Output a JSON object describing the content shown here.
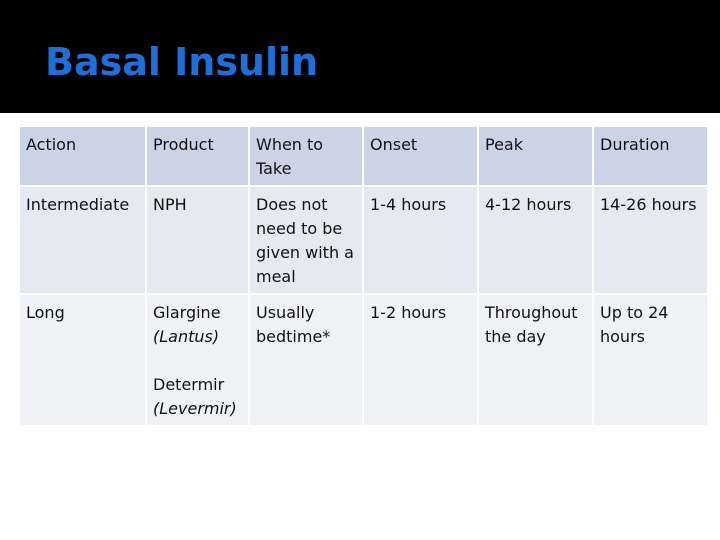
{
  "slide": {
    "title": "Basal Insulin"
  },
  "table": {
    "headers": [
      "Action",
      "Product",
      "When to Take",
      "Onset",
      "Peak",
      "Duration"
    ],
    "rows": [
      {
        "action": "Intermediate",
        "product": "NPH",
        "when": "Does not need to be given with a meal",
        "onset": "1-4 hours",
        "peak": "4-12 hours",
        "duration": "14-26 hours"
      },
      {
        "action": "Long",
        "product_1": "Glargine",
        "product_1_brand": "(Lantus)",
        "product_2": "Determir",
        "product_2_brand": "(Levermir)",
        "when_1": "Usually",
        "when_2": "bedtime*",
        "onset": "1-2 hours",
        "peak": "Throughout the day",
        "duration": "Up to 24 hours"
      }
    ]
  },
  "colors": {
    "title_bar": "#000000",
    "title_text": "#1f6fd8",
    "header_row": "#cdd3e6",
    "row_1": "#e6e9f2",
    "row_2": "#f0f2f7"
  }
}
